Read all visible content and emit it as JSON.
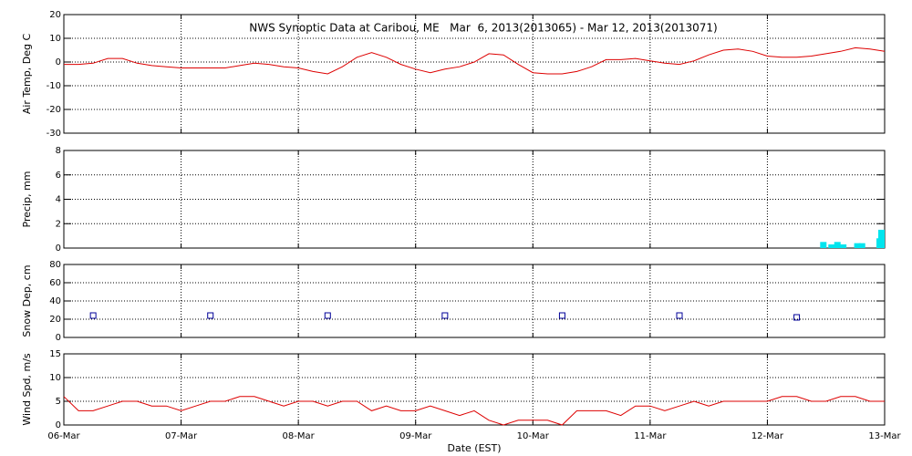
{
  "chart_data": [
    {
      "type": "line",
      "title": "NWS Synoptic Data at Caribou, ME   Mar  6, 2013(2013065) - Mar 12, 2013(2013071)",
      "ylabel": "Air Temp, Deg C",
      "color": "#dd0000",
      "x": [
        0,
        0.125,
        0.25,
        0.375,
        0.5,
        0.625,
        0.75,
        0.875,
        1,
        1.125,
        1.25,
        1.375,
        1.5,
        1.625,
        1.75,
        1.875,
        2,
        2.125,
        2.25,
        2.375,
        2.5,
        2.625,
        2.75,
        2.875,
        3,
        3.125,
        3.25,
        3.375,
        3.5,
        3.625,
        3.75,
        3.875,
        4,
        4.125,
        4.25,
        4.375,
        4.5,
        4.625,
        4.75,
        4.875,
        5,
        5.125,
        5.25,
        5.375,
        5.5,
        5.625,
        5.75,
        5.875,
        6,
        6.125,
        6.25,
        6.375,
        6.5,
        6.625,
        6.75,
        6.875,
        7
      ],
      "values": [
        -1,
        -1,
        -0.5,
        1.5,
        1.5,
        -0.5,
        -1.5,
        -2,
        -2.5,
        -2.5,
        -2.5,
        -2.5,
        -1.5,
        -0.5,
        -1,
        -2,
        -2.5,
        -4,
        -5,
        -2,
        2,
        4,
        2,
        -1,
        -3,
        -4.5,
        -3,
        -2,
        0,
        3.5,
        3,
        -1,
        -4.5,
        -5,
        -5,
        -4,
        -2,
        1,
        1,
        1.5,
        0.5,
        -0.5,
        -1,
        0.5,
        3,
        5,
        5.5,
        4.5,
        2.5,
        2,
        2,
        2.5,
        3.5,
        4.5,
        6,
        5.5,
        4.5
      ],
      "xlim": [
        0,
        7
      ],
      "xticks": [
        0,
        1,
        2,
        3,
        4,
        5,
        6,
        7
      ],
      "ylim": [
        -30,
        20
      ],
      "yticks": [
        -30,
        -20,
        -10,
        0,
        10,
        20
      ],
      "grid": true
    },
    {
      "type": "bar",
      "ylabel": "Precip, mm",
      "color": "#00e5ee",
      "x": [
        6.45,
        6.52,
        6.57,
        6.62,
        6.74,
        6.78,
        6.93,
        6.96,
        6.99
      ],
      "values": [
        0.5,
        0.3,
        0.5,
        0.3,
        0.4,
        0.4,
        0.8,
        1.5,
        1.0
      ],
      "xlim": [
        0,
        7
      ],
      "xticks": [
        0,
        1,
        2,
        3,
        4,
        5,
        6,
        7
      ],
      "ylim": [
        0,
        8
      ],
      "yticks": [
        0,
        2,
        4,
        6,
        8
      ],
      "grid": true
    },
    {
      "type": "scatter",
      "ylabel": "Snow Dep, cm",
      "color": "#000099",
      "x": [
        0.25,
        1.25,
        2.25,
        3.25,
        4.25,
        5.25,
        6.25
      ],
      "values": [
        24,
        24,
        24,
        24,
        24,
        24,
        22
      ],
      "xlim": [
        0,
        7
      ],
      "xticks": [
        0,
        1,
        2,
        3,
        4,
        5,
        6,
        7
      ],
      "ylim": [
        0,
        80
      ],
      "yticks": [
        0,
        20,
        40,
        60,
        80
      ],
      "grid": true
    },
    {
      "type": "line",
      "ylabel": "Wind Spd, m/s",
      "xlabel": "Date (EST)",
      "color": "#dd0000",
      "x": [
        0,
        0.125,
        0.25,
        0.375,
        0.5,
        0.625,
        0.75,
        0.875,
        1,
        1.125,
        1.25,
        1.375,
        1.5,
        1.625,
        1.75,
        1.875,
        2,
        2.125,
        2.25,
        2.375,
        2.5,
        2.625,
        2.75,
        2.875,
        3,
        3.125,
        3.25,
        3.375,
        3.5,
        3.625,
        3.75,
        3.875,
        4,
        4.125,
        4.25,
        4.375,
        4.5,
        4.625,
        4.75,
        4.875,
        5,
        5.125,
        5.25,
        5.375,
        5.5,
        5.625,
        5.75,
        5.875,
        6,
        6.125,
        6.25,
        6.375,
        6.5,
        6.625,
        6.75,
        6.875,
        7
      ],
      "values": [
        6,
        3,
        3,
        4,
        5,
        5,
        4,
        4,
        3,
        4,
        5,
        5,
        6,
        6,
        5,
        4,
        5,
        5,
        4,
        5,
        5,
        3,
        4,
        3,
        3,
        4,
        3,
        2,
        3,
        1,
        0,
        1,
        1,
        1,
        0,
        3,
        3,
        3,
        2,
        4,
        4,
        3,
        4,
        5,
        4,
        5,
        5,
        5,
        5,
        6,
        6,
        5,
        5,
        6,
        6,
        5,
        5
      ],
      "xlim": [
        0,
        7
      ],
      "xticks": [
        {
          "value": 0,
          "label": "06-Mar"
        },
        {
          "value": 1,
          "label": "07-Mar"
        },
        {
          "value": 2,
          "label": "08-Mar"
        },
        {
          "value": 3,
          "label": "09-Mar"
        },
        {
          "value": 4,
          "label": "10-Mar"
        },
        {
          "value": 5,
          "label": "11-Mar"
        },
        {
          "value": 6,
          "label": "12-Mar"
        },
        {
          "value": 7,
          "label": "13-Mar"
        }
      ],
      "ylim": [
        0,
        15
      ],
      "yticks": [
        0,
        5,
        10,
        15
      ],
      "grid": true
    }
  ]
}
